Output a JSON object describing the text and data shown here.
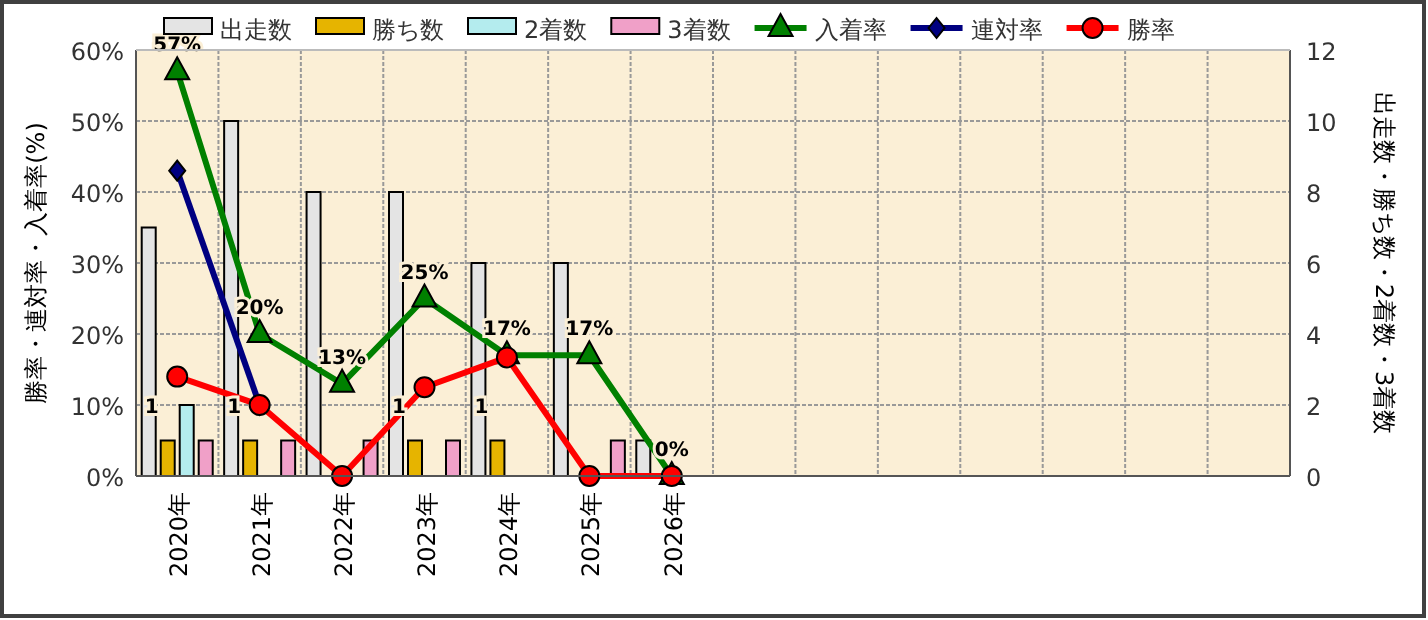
{
  "chart_data": {
    "type": "bar",
    "categories": [
      "2020年",
      "2021年",
      "2022年",
      "2023年",
      "2024年",
      "2025年",
      "2026年",
      null,
      null,
      null,
      null,
      null,
      null,
      null
    ],
    "ylabel": "勝率・連対率・入着率(%)",
    "y2label": "出走数・勝ち数・2着数・3着数",
    "ylim": [
      0,
      60
    ],
    "yticks": [
      {
        "value": 0,
        "label": "0%"
      },
      {
        "value": 10,
        "label": "10%"
      },
      {
        "value": 20,
        "label": "20%"
      },
      {
        "value": 30,
        "label": "30%"
      },
      {
        "value": 40,
        "label": "40%"
      },
      {
        "value": 50,
        "label": "50%"
      },
      {
        "value": 60,
        "label": "60%"
      }
    ],
    "y2lim": [
      0,
      12
    ],
    "y2ticks": [
      0,
      2,
      4,
      6,
      8,
      10,
      12
    ],
    "grid": true,
    "legend": "top",
    "series": [
      {
        "name": "出走数",
        "axis": "y2",
        "color": "#e4e4e4",
        "values": [
          7,
          10,
          8,
          8,
          6,
          6,
          1,
          null,
          null,
          null,
          null,
          null,
          null,
          null
        ]
      },
      {
        "name": "勝ち数",
        "axis": "y2",
        "color": "#e6b400",
        "values": [
          1,
          1,
          0,
          1,
          1,
          0,
          0,
          null,
          null,
          null,
          null,
          null,
          null,
          null
        ],
        "value_labels": [
          "1",
          "1",
          null,
          "1",
          "1",
          null,
          null,
          null,
          null,
          null,
          null,
          null,
          null,
          null
        ]
      },
      {
        "name": "2着数",
        "axis": "y2",
        "color": "#b4ecee",
        "values": [
          2,
          0,
          0,
          0,
          0,
          0,
          0,
          null,
          null,
          null,
          null,
          null,
          null,
          null
        ]
      },
      {
        "name": "3着数",
        "axis": "y2",
        "color": "#f0a0c8",
        "values": [
          1,
          1,
          1,
          1,
          0,
          1,
          0,
          null,
          null,
          null,
          null,
          null,
          null,
          null
        ]
      },
      {
        "name": "入着率",
        "type": "line",
        "color": "#008000",
        "marker": "triangle",
        "values": [
          57,
          20,
          13,
          25,
          17,
          17,
          0,
          null,
          null,
          null,
          null,
          null,
          null,
          null
        ],
        "value_labels": [
          "57%",
          "20%",
          "13%",
          "25%",
          "17%",
          "17%",
          "0%",
          null,
          null,
          null,
          null,
          null,
          null,
          null
        ]
      },
      {
        "name": "連対率",
        "type": "line",
        "color": "#000080",
        "marker": "diamond",
        "values": [
          43,
          10,
          null,
          null,
          null,
          null,
          null,
          null,
          null,
          null,
          null,
          null,
          null,
          null
        ]
      },
      {
        "name": "勝率",
        "type": "line",
        "color": "#ff0000",
        "marker": "circle",
        "values": [
          14,
          10,
          0,
          12.5,
          16.7,
          0,
          0,
          null,
          null,
          null,
          null,
          null,
          null,
          null
        ]
      }
    ]
  }
}
